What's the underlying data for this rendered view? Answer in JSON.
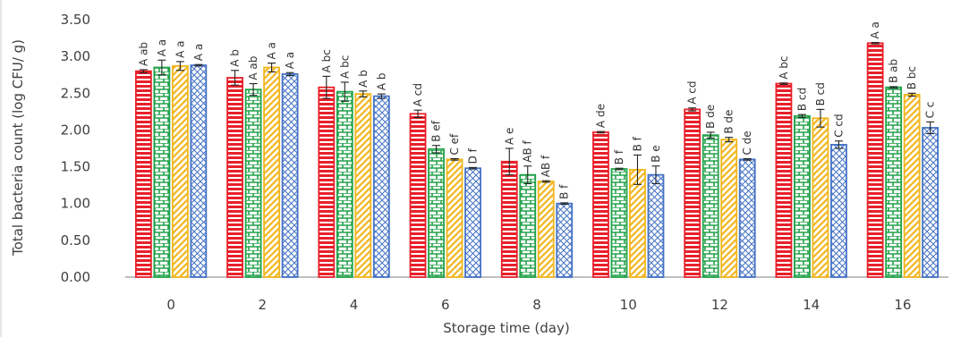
{
  "chart_data": {
    "type": "bar",
    "xlabel": "Storage time (day)",
    "ylabel": "Total bacteria count (log CFU/ g)",
    "ylim": [
      0,
      3.5
    ],
    "yticks": [
      "0.00",
      "0.50",
      "1.00",
      "1.50",
      "2.00",
      "2.50",
      "3.00",
      "3.50"
    ],
    "categories": [
      "0",
      "2",
      "4",
      "6",
      "8",
      "10",
      "12",
      "14",
      "16"
    ],
    "grid": false,
    "legend": "none",
    "series": [
      {
        "color": "#e8202a",
        "pattern": "horizontal-stripes",
        "values": [
          2.8,
          2.71,
          2.58,
          2.22,
          1.57,
          1.97,
          2.28,
          2.63,
          3.18
        ],
        "errors": [
          0.02,
          0.1,
          0.15,
          0.05,
          0.18,
          0.01,
          0.02,
          0.01,
          0.01
        ],
        "labels": [
          "A ab",
          "A b",
          "A bc",
          "A cd",
          "A e",
          "A de",
          "A cd",
          "A bc",
          "A a"
        ]
      },
      {
        "color": "#22a24a",
        "pattern": "brick",
        "values": [
          2.85,
          2.55,
          2.52,
          1.74,
          1.39,
          1.47,
          1.93,
          2.19,
          2.58
        ],
        "errors": [
          0.1,
          0.08,
          0.13,
          0.05,
          0.12,
          0.01,
          0.04,
          0.02,
          0.01
        ],
        "labels": [
          "A a",
          "A ab",
          "A bc",
          "B ef",
          "AB f",
          "B f",
          "B de",
          "B cd",
          "B ab"
        ]
      },
      {
        "color": "#f2b61e",
        "pattern": "diagonal",
        "values": [
          2.87,
          2.85,
          2.49,
          1.6,
          1.3,
          1.46,
          1.87,
          2.16,
          2.48
        ],
        "errors": [
          0.06,
          0.06,
          0.04,
          0.01,
          0.01,
          0.2,
          0.03,
          0.12,
          0.02
        ],
        "labels": [
          "A a",
          "A a",
          "A b",
          "C ef",
          "AB f",
          "B f",
          "B de",
          "B cd",
          "B bc"
        ]
      },
      {
        "color": "#4472c4",
        "pattern": "crosshatch",
        "values": [
          2.88,
          2.76,
          2.46,
          1.48,
          1.0,
          1.39,
          1.6,
          1.8,
          2.03
        ],
        "errors": [
          0.01,
          0.02,
          0.03,
          0.01,
          0.01,
          0.12,
          0.01,
          0.05,
          0.08
        ],
        "labels": [
          "A a",
          "A a",
          "A b",
          "D f",
          "B f",
          "B e",
          "C de",
          "C cd",
          "C c"
        ]
      }
    ]
  }
}
